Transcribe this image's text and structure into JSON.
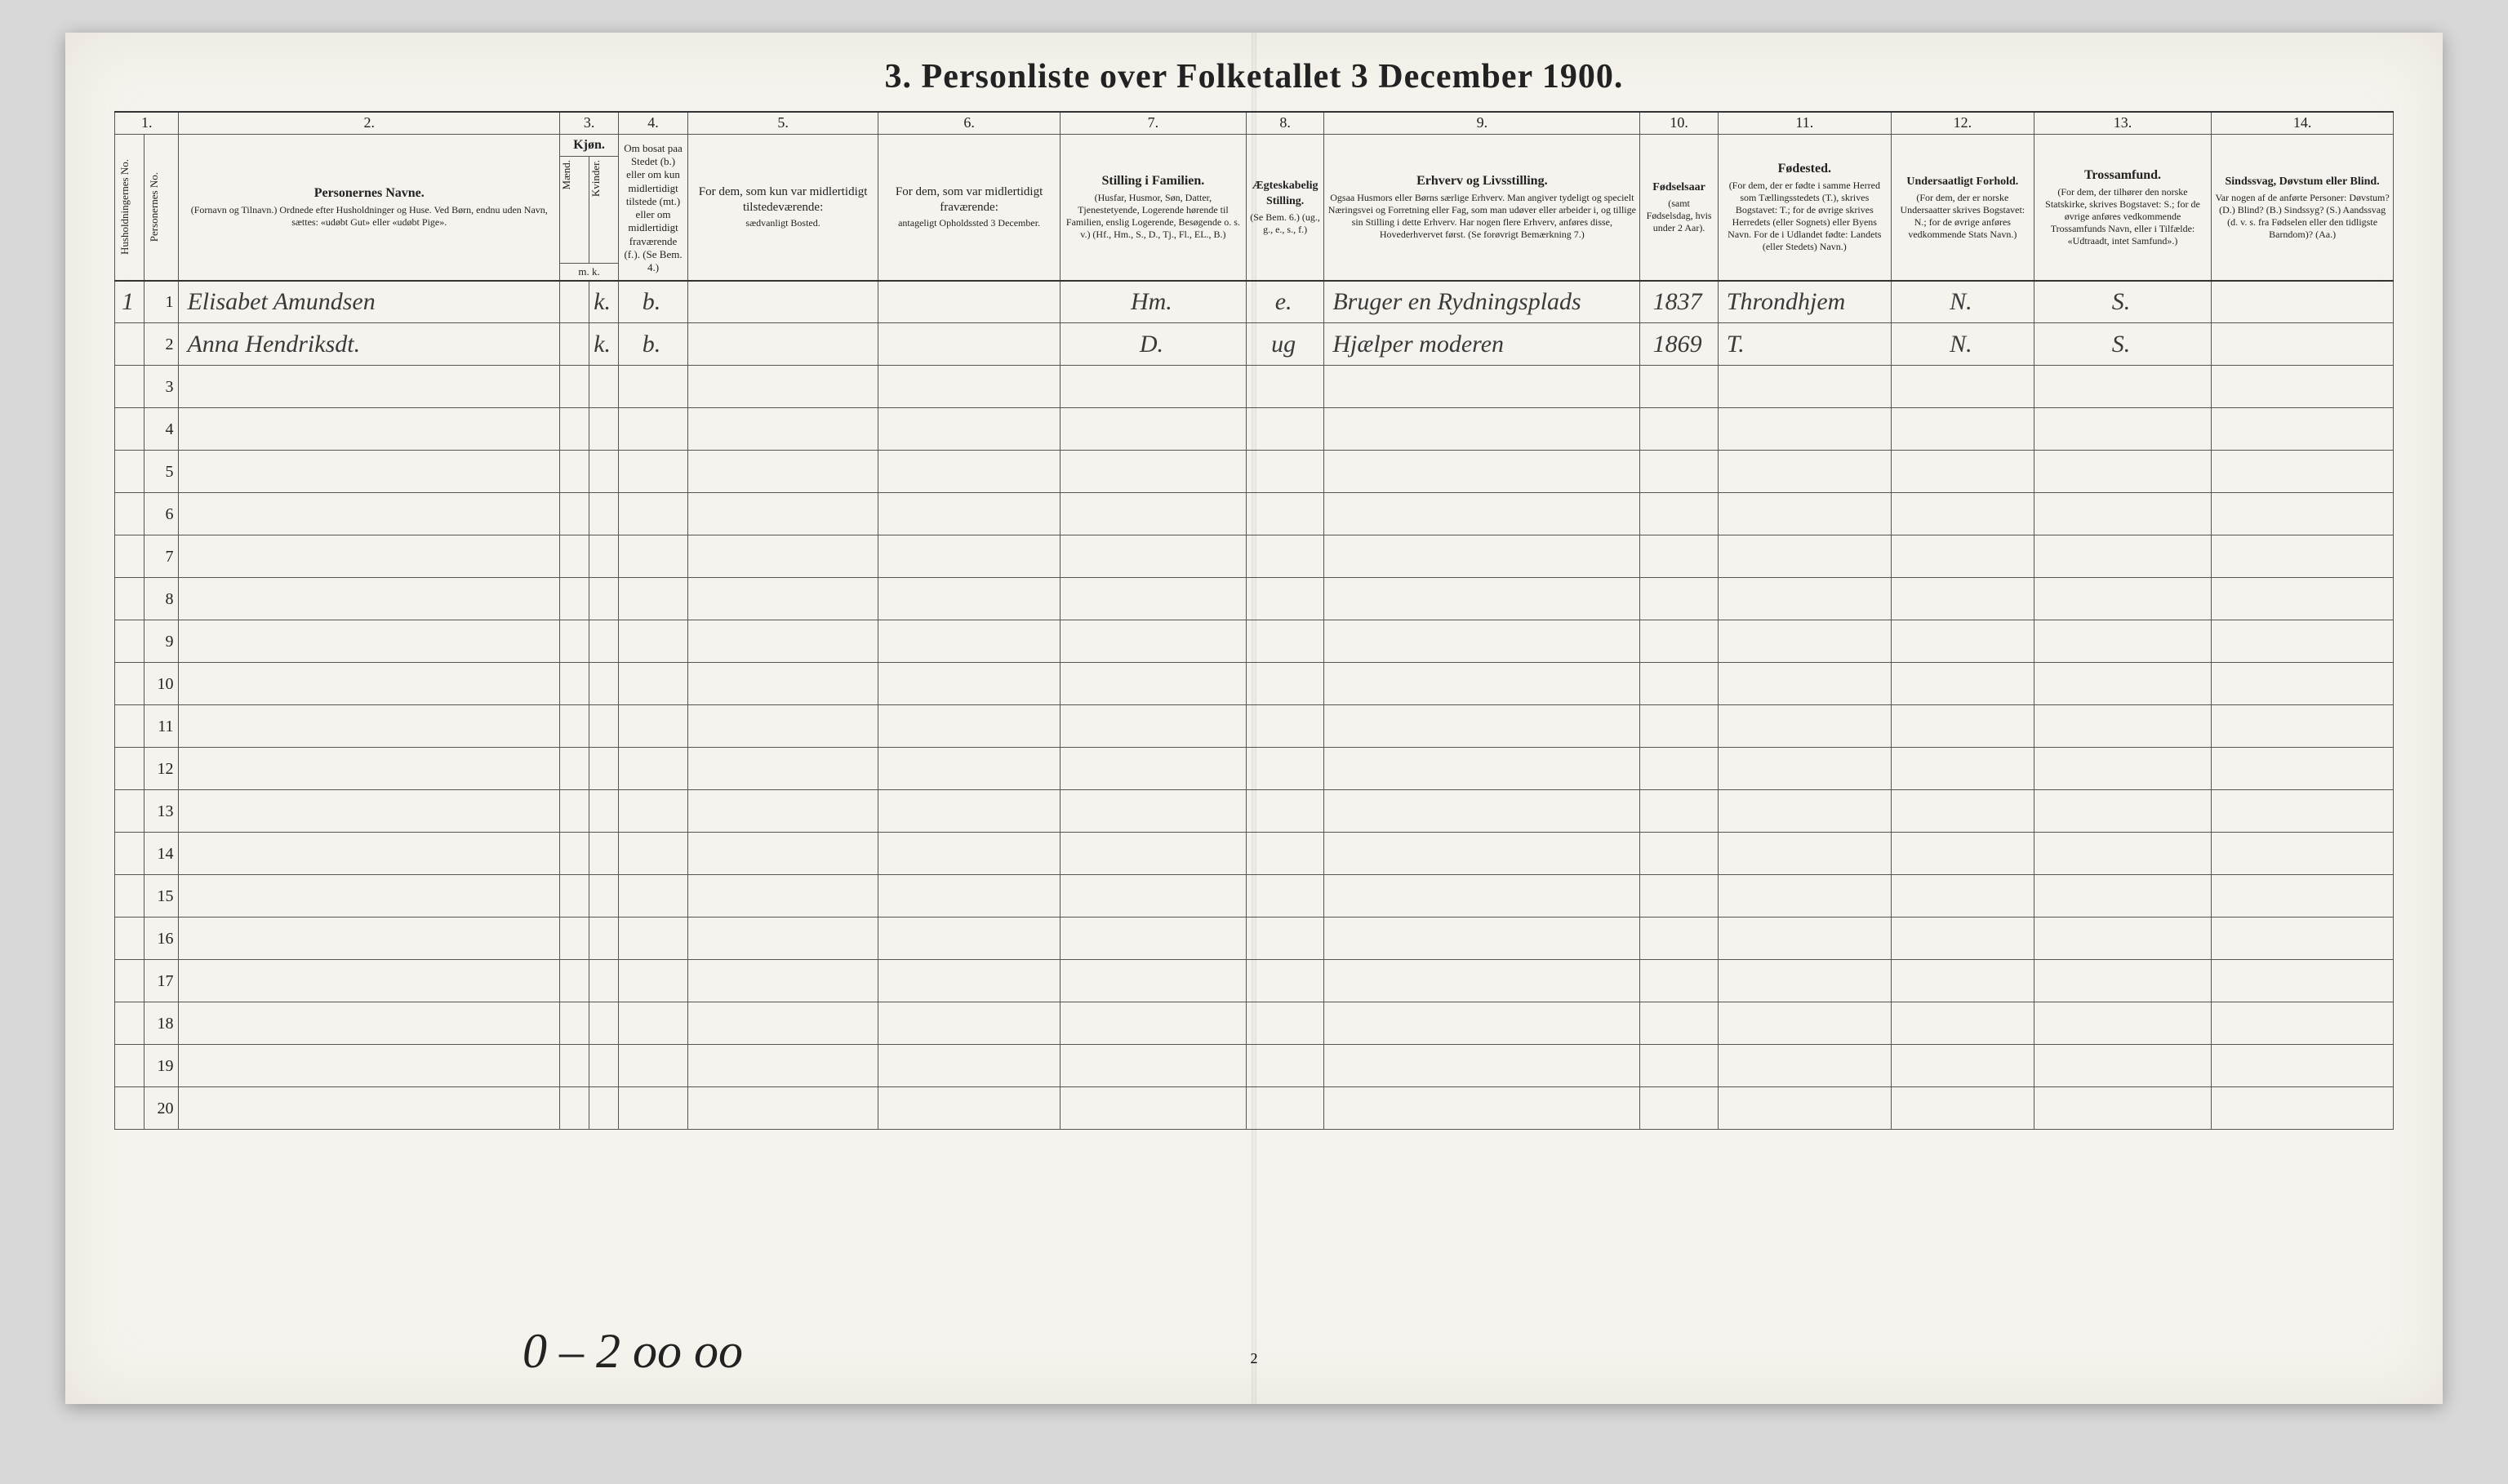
{
  "title": "3.  Personliste over Folketallet 3 December 1900.",
  "colnums": [
    "1.",
    "2.",
    "3.",
    "4.",
    "5.",
    "6.",
    "7.",
    "8.",
    "9.",
    "10.",
    "11.",
    "12.",
    "13.",
    "14."
  ],
  "headers": {
    "c1a": "Husholdningernes No.",
    "c1b": "Personernes No.",
    "c2": "Personernes Navne.",
    "c2s": "(Fornavn og Tilnavn.) Ordnede efter Husholdninger og Huse. Ved Børn, endnu uden Navn, sættes: «udøbt Gut» eller «udøbt Pige».",
    "c3": "Kjøn.",
    "c3a": "Mænd.",
    "c3b": "Kvinder.",
    "c3mk": "m. k.",
    "c4": "Om bosat paa Stedet (b.) eller om kun midlertidigt tilstede (mt.) eller om midlertidigt fraværende (f.). (Se Bem. 4.)",
    "c5": "For dem, som kun var midlertidigt tilstedeværende:",
    "c5s": "sædvanligt Bosted.",
    "c6": "For dem, som var midlertidigt fraværende:",
    "c6s": "antageligt Opholdssted 3 December.",
    "c7": "Stilling i Familien.",
    "c7s": "(Husfar, Husmor, Søn, Datter, Tjenestetyende, Logerende hørende til Familien, enslig Logerende, Besøgende o. s. v.) (Hf., Hm., S., D., Tj., Fl., EL., B.)",
    "c8": "Ægteskabelig Stilling.",
    "c8s": "(Se Bem. 6.) (ug., g., e., s., f.)",
    "c9": "Erhverv og Livsstilling.",
    "c9s": "Ogsaa Husmors eller Børns særlige Erhverv. Man angiver tydeligt og specielt Næringsvei og Forretning eller Fag, som man udøver eller arbeider i, og tillige sin Stilling i dette Erhverv. Har nogen flere Erhverv, anføres disse, Hovederhvervet først. (Se forøvrigt Bemærkning 7.)",
    "c10": "Fødselsaar",
    "c10s": "(samt Fødselsdag, hvis under 2 Aar).",
    "c11": "Fødested.",
    "c11s": "(For dem, der er fødte i samme Herred som Tællingsstedets (T.), skrives Bogstavet: T.; for de øvrige skrives Herredets (eller Sognets) eller Byens Navn. For de i Udlandet fødte: Landets (eller Stedets) Navn.)",
    "c12": "Undersaatligt Forhold.",
    "c12s": "(For dem, der er norske Undersaatter skrives Bogstavet: N.; for de øvrige anføres vedkommende Stats Navn.)",
    "c13": "Trossamfund.",
    "c13s": "(For dem, der tilhører den norske Statskirke, skrives Bogstavet: S.; for de øvrige anføres vedkommende Trossamfunds Navn, eller i Tilfælde: «Udtraadt, intet Samfund».)",
    "c14": "Sindssvag, Døvstum eller Blind.",
    "c14s": "Var nogen af de anførte Personer: Døvstum? (D.) Blind? (B.) Sindssyg? (S.) Aandssvag (d. v. s. fra Fødselen eller den tidligste Barndom)? (Aa.)"
  },
  "rows": [
    {
      "hh": "1",
      "pn": "1",
      "name": "Elisabet Amundsen",
      "m": "",
      "k": "k.",
      "bf": "b.",
      "c5": "",
      "c6": "",
      "c7": "Hm.",
      "c8": "e.",
      "c9": "Bruger en Rydningsplads",
      "c10": "1837",
      "c11": "Throndhjem",
      "c12": "N.",
      "c13": "S.",
      "c14": ""
    },
    {
      "hh": "",
      "pn": "2",
      "name": "Anna Hendriksdt.",
      "m": "",
      "k": "k.",
      "bf": "b.",
      "c5": "",
      "c6": "",
      "c7": "D.",
      "c8": "ug",
      "c9": "Hjælper moderen",
      "c10": "1869",
      "c11": "T.",
      "c12": "N.",
      "c13": "S.",
      "c14": ""
    }
  ],
  "empty_rows": [
    "3",
    "4",
    "5",
    "6",
    "7",
    "8",
    "9",
    "10",
    "11",
    "12",
    "13",
    "14",
    "15",
    "16",
    "17",
    "18",
    "19",
    "20"
  ],
  "footer_hw": "0 – 2   oo   oo",
  "page_number": "2"
}
